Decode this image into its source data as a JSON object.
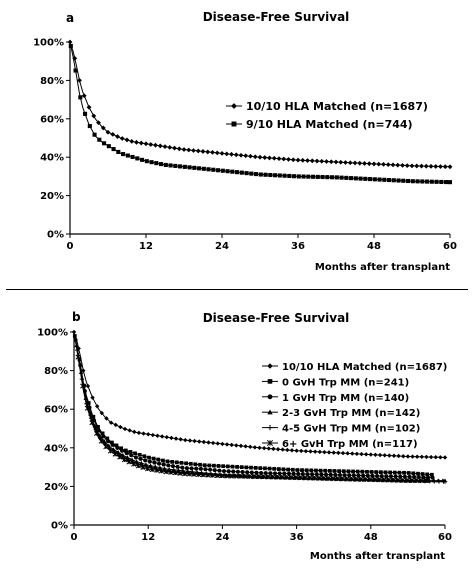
{
  "panels": [
    {
      "letter": "a",
      "chart_data": {
        "type": "line",
        "title": "Disease-Free Survival",
        "xlabel": "Months after transplant",
        "ylabel": "",
        "xlim": [
          0,
          60
        ],
        "ylim": [
          0,
          100
        ],
        "xticks": [
          "0",
          "12",
          "24",
          "36",
          "48",
          "60"
        ],
        "yticks": [
          "0%",
          "20%",
          "40%",
          "60%",
          "80%",
          "100%"
        ],
        "grid": false,
        "legend_position": "right",
        "series": [
          {
            "name": "10/10 HLA Matched (n=1687)",
            "marker": "diamond",
            "x": [
              0,
              0.5,
              1,
              1.5,
              2,
              3,
              4,
              5,
              6,
              8,
              10,
              12,
              15,
              18,
              21,
              24,
              30,
              36,
              42,
              48,
              54,
              60
            ],
            "y": [
              100,
              95,
              88,
              80,
              74,
              66,
              60,
              56,
              53,
              50,
              48,
              47,
              45.5,
              44,
              43,
              42,
              40,
              38.5,
              37.5,
              36.5,
              35.5,
              35
            ]
          },
          {
            "name": "9/10 HLA Matched (n=744)",
            "marker": "square",
            "x": [
              0,
              0.5,
              1,
              1.5,
              2,
              3,
              4,
              5,
              6,
              8,
              10,
              12,
              15,
              18,
              21,
              24,
              30,
              36,
              42,
              48,
              54,
              60
            ],
            "y": [
              100,
              92,
              83,
              73,
              66,
              57,
              51,
              48,
              46,
              42,
              40,
              38,
              36,
              35,
              34,
              33,
              31,
              30,
              29.5,
              28.5,
              27.5,
              27
            ]
          }
        ]
      }
    },
    {
      "letter": "b",
      "chart_data": {
        "type": "line",
        "title": "Disease-Free Survival",
        "xlabel": "Months after transplant",
        "ylabel": "",
        "xlim": [
          0,
          60
        ],
        "ylim": [
          0,
          100
        ],
        "xticks": [
          "0",
          "12",
          "24",
          "36",
          "48",
          "60"
        ],
        "yticks": [
          "0%",
          "20%",
          "40%",
          "60%",
          "80%",
          "100%"
        ],
        "grid": false,
        "legend_position": "right",
        "series": [
          {
            "name": "10/10 HLA Matched (n=1687)",
            "marker": "diamond",
            "x": [
              0,
              0.5,
              1,
              1.5,
              2,
              3,
              4,
              5,
              6,
              8,
              10,
              12,
              15,
              18,
              21,
              24,
              30,
              36,
              42,
              48,
              54,
              60
            ],
            "y": [
              100,
              95,
              88,
              80,
              74,
              66,
              60,
              56,
              53,
              50,
              48,
              47,
              45.5,
              44,
              43,
              42,
              40,
              38.5,
              37.5,
              36.5,
              35.5,
              35
            ]
          },
          {
            "name": "0 GvH Trp MM (n=241)",
            "marker": "square",
            "x": [
              0,
              0.5,
              1,
              1.5,
              2,
              3,
              4,
              5,
              6,
              8,
              10,
              12,
              15,
              18,
              21,
              24,
              30,
              36,
              42,
              48,
              54,
              58
            ],
            "y": [
              100,
              92,
              84,
              74,
              67,
              57,
              50,
              46,
              43,
              39,
              37,
              35,
              33,
              32,
              31,
              30.5,
              29.5,
              28.5,
              28,
              27.5,
              27,
              26
            ]
          },
          {
            "name": "1 GvH Trp MM (n=140)",
            "marker": "circle",
            "x": [
              0,
              0.5,
              1,
              1.5,
              2,
              3,
              4,
              5,
              6,
              8,
              10,
              12,
              15,
              18,
              21,
              24,
              30,
              36,
              42,
              48,
              54,
              58
            ],
            "y": [
              100,
              92,
              83,
              73,
              66,
              56,
              49,
              45,
              42,
              38,
              35,
              33,
              31,
              29.5,
              29,
              28,
              27,
              26.5,
              26,
              25.5,
              25,
              24.5
            ]
          },
          {
            "name": "2-3 GvH Trp MM (n=142)",
            "marker": "triangle",
            "x": [
              0,
              0.5,
              1,
              1.5,
              2,
              3,
              4,
              5,
              6,
              8,
              10,
              12,
              15,
              18,
              21,
              24,
              30,
              36,
              42,
              48,
              54,
              60
            ],
            "y": [
              100,
              91,
              82,
              72,
              64,
              54,
              47,
              43,
              40,
              36,
              33,
              31,
              29,
              28,
              27,
              26,
              25,
              24.5,
              24,
              23.5,
              23,
              23
            ]
          },
          {
            "name": "4-5 GvH Trp MM (n=102)",
            "marker": "plus",
            "x": [
              0,
              0.5,
              1,
              1.5,
              2,
              3,
              4,
              5,
              6,
              8,
              10,
              12,
              15,
              18,
              21,
              24,
              30,
              36,
              42,
              48,
              54,
              60
            ],
            "y": [
              100,
              91,
              81,
              71,
              63,
              53,
              46,
              42,
              39,
              35,
              32,
              30,
              28,
              27,
              26,
              25.5,
              25,
              24.5,
              24,
              23.5,
              23,
              22.5
            ]
          },
          {
            "name": "6+ GvH Trp MM (n=117)",
            "marker": "star",
            "x": [
              0,
              0.5,
              1,
              1.5,
              2,
              3,
              4,
              5,
              6,
              8,
              10,
              12,
              15,
              18,
              21,
              24,
              30,
              36,
              42,
              48,
              54,
              57
            ],
            "y": [
              100,
              90,
              80,
              70,
              62,
              52,
              45,
              41,
              38,
              34,
              31,
              29,
              27.5,
              26.5,
              26,
              25.5,
              25,
              24.5,
              24,
              23.5,
              23,
              23
            ]
          }
        ]
      }
    }
  ]
}
